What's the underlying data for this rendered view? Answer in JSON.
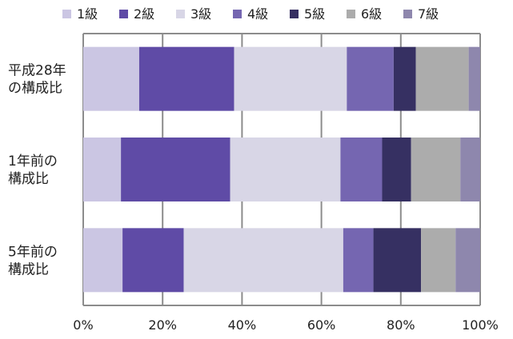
{
  "chart_data": {
    "type": "bar",
    "orientation": "horizontal",
    "stacked": "percent",
    "title": "",
    "xlabel": "",
    "ylabel": "",
    "xlim": [
      0,
      100
    ],
    "x_ticks": [
      "0%",
      "20%",
      "40%",
      "60%",
      "80%",
      "100%"
    ],
    "grid": true,
    "legend_position": "top",
    "categories": [
      [
        "平成28年",
        "の構成比"
      ],
      [
        "1年前の",
        "構成比"
      ],
      [
        "5年前の",
        "構成比"
      ]
    ],
    "series": [
      {
        "name": "1級",
        "color": "#cbc6e3",
        "values": [
          14.1,
          9.5,
          9.9
        ]
      },
      {
        "name": "2級",
        "color": "#5f4ba6",
        "values": [
          23.9,
          27.5,
          15.4
        ]
      },
      {
        "name": "3級",
        "color": "#d8d6e6",
        "values": [
          28.4,
          27.8,
          40.2
        ]
      },
      {
        "name": "4級",
        "color": "#7566b1",
        "values": [
          11.8,
          10.5,
          7.6
        ]
      },
      {
        "name": "5級",
        "color": "#363062",
        "values": [
          5.6,
          7.3,
          12.0
        ]
      },
      {
        "name": "6級",
        "color": "#acacac",
        "values": [
          13.3,
          12.4,
          8.7
        ]
      },
      {
        "name": "7級",
        "color": "#8e87ad",
        "values": [
          2.9,
          5.0,
          6.2
        ]
      }
    ]
  }
}
